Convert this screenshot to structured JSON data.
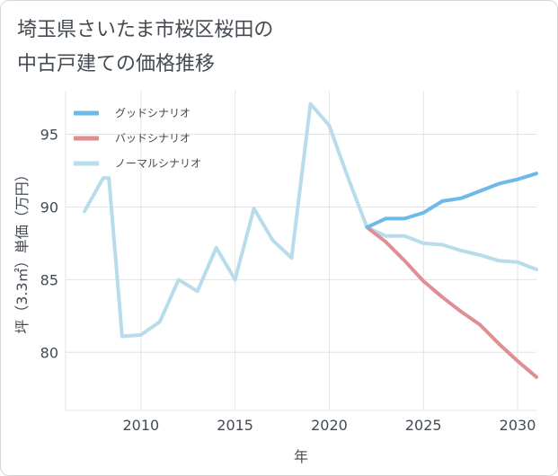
{
  "title_line1": "埼玉県さいたま市桜区桜田の",
  "title_line2": "中古戸建ての価格推移",
  "chart_data": {
    "type": "line",
    "xlabel": "年",
    "ylabel": "坪（3.3㎡）単価（万円）",
    "xlim": [
      2006,
      2031
    ],
    "ylim": [
      76,
      98
    ],
    "x_ticks": [
      2010,
      2015,
      2020,
      2025,
      2030
    ],
    "y_ticks": [
      80,
      85,
      90,
      95
    ],
    "grid": true,
    "legend_position": "top-left",
    "series": [
      {
        "name": "グッドシナリオ",
        "color": "#6cb9ea",
        "x": [
          2022,
          2023,
          2024,
          2025,
          2026,
          2027,
          2028,
          2029,
          2030,
          2031
        ],
        "values": [
          88.6,
          89.2,
          89.2,
          89.6,
          90.4,
          90.6,
          91.1,
          91.6,
          91.9,
          92.3
        ]
      },
      {
        "name": "バッドシナリオ",
        "color": "#e08e94",
        "x": [
          2022,
          2023,
          2024,
          2025,
          2026,
          2027,
          2028,
          2029,
          2030,
          2031
        ],
        "values": [
          88.6,
          87.6,
          86.3,
          84.9,
          83.8,
          82.8,
          81.9,
          80.6,
          79.4,
          78.3
        ]
      },
      {
        "name": "ノーマルシナリオ",
        "color": "#b8dcea",
        "x": [
          2007,
          2008,
          2008.3,
          2009,
          2010,
          2011,
          2012,
          2013,
          2014,
          2015,
          2016,
          2017,
          2018,
          2019,
          2020,
          2021,
          2022,
          2023,
          2024,
          2025,
          2026,
          2027,
          2028,
          2029,
          2030,
          2031
        ],
        "values": [
          89.7,
          92.0,
          92.0,
          81.1,
          81.2,
          82.1,
          85.0,
          84.2,
          87.2,
          85.0,
          89.9,
          87.7,
          86.5,
          97.1,
          95.6,
          92.0,
          88.6,
          88.0,
          88.0,
          87.5,
          87.4,
          87.0,
          86.7,
          86.3,
          86.2,
          85.7
        ]
      }
    ]
  }
}
